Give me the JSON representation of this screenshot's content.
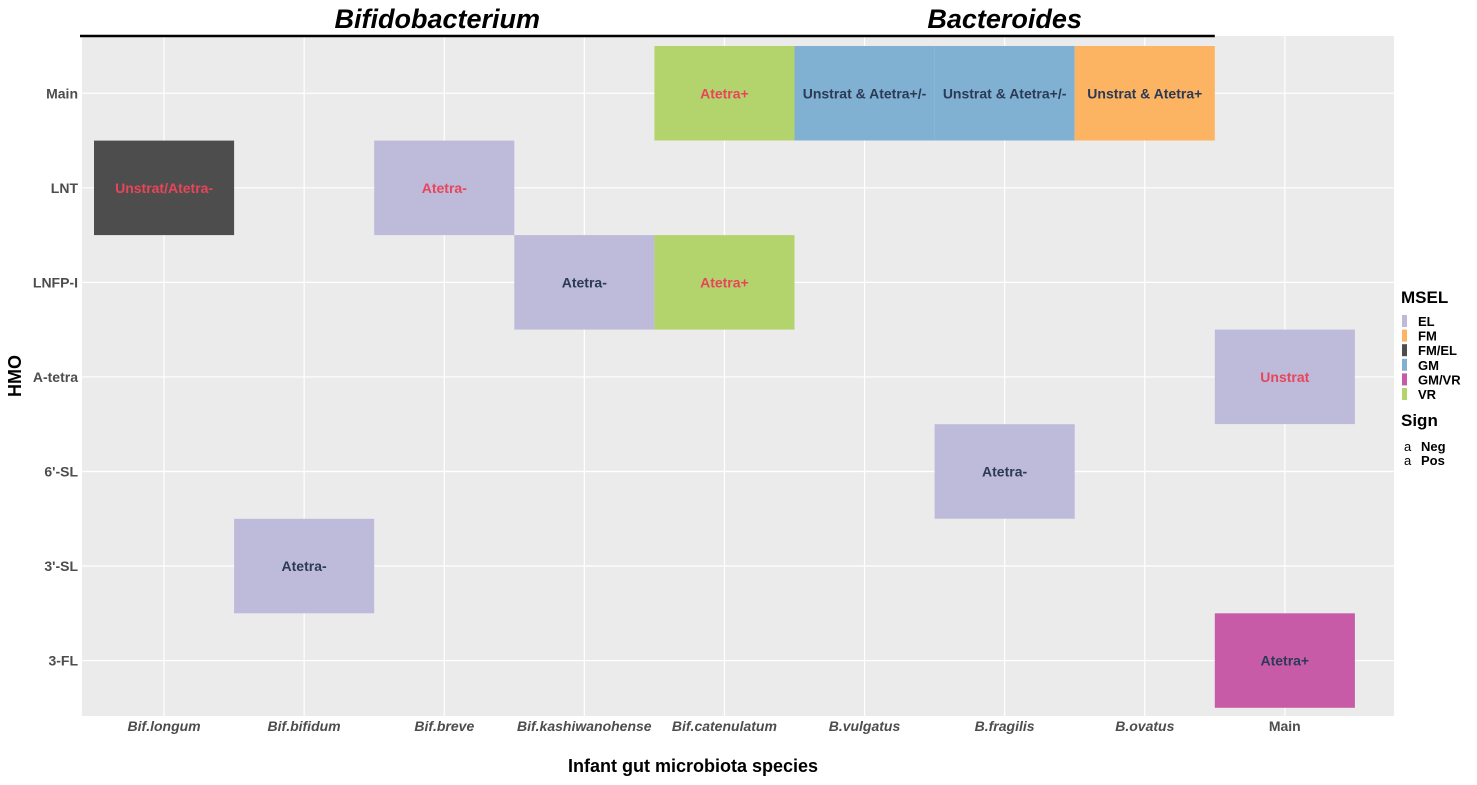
{
  "chart_data": {
    "type": "heatmap",
    "group_titles": [
      {
        "label": "Bifidobacterium",
        "from": 0,
        "to": 4
      },
      {
        "label": "Bacteroides",
        "from": 5,
        "to": 7
      }
    ],
    "x_categories": [
      "Bif.longum",
      "Bif.bifidum",
      "Bif.breve",
      "Bif.kashiwanohense",
      "Bif.catenulatum",
      "B.vulgatus",
      "B.fragilis",
      "B.ovatus",
      "Main"
    ],
    "x_italic": [
      true,
      true,
      true,
      true,
      true,
      true,
      true,
      true,
      false
    ],
    "y_categories": [
      "Main",
      "LNT",
      "LNFP-I",
      "A-tetra",
      "6'-SL",
      "3'-SL",
      "3-FL"
    ],
    "xlabel": "Infant gut microbiota species",
    "ylabel": "HMO",
    "cells": [
      {
        "x": "Bif.catenulatum",
        "y": "Main",
        "msel": "VR",
        "label": "Atetra+",
        "sign": "Neg"
      },
      {
        "x": "B.vulgatus",
        "y": "Main",
        "msel": "GM",
        "label": "Unstrat & Atetra+/-",
        "sign": "Pos"
      },
      {
        "x": "B.fragilis",
        "y": "Main",
        "msel": "GM",
        "label": "Unstrat & Atetra+/-",
        "sign": "Pos"
      },
      {
        "x": "B.ovatus",
        "y": "Main",
        "msel": "FM",
        "label": "Unstrat & Atetra+",
        "sign": "Pos"
      },
      {
        "x": "Bif.longum",
        "y": "LNT",
        "msel": "FM/EL",
        "label": "Unstrat/Atetra-",
        "sign": "Neg"
      },
      {
        "x": "Bif.breve",
        "y": "LNT",
        "msel": "EL",
        "label": "Atetra-",
        "sign": "Neg"
      },
      {
        "x": "Bif.kashiwanohense",
        "y": "LNFP-I",
        "msel": "EL",
        "label": "Atetra-",
        "sign": "Pos"
      },
      {
        "x": "Bif.catenulatum",
        "y": "LNFP-I",
        "msel": "VR",
        "label": "Atetra+",
        "sign": "Neg"
      },
      {
        "x": "Main",
        "y": "A-tetra",
        "msel": "EL",
        "label": "Unstrat",
        "sign": "Neg"
      },
      {
        "x": "B.fragilis",
        "y": "6'-SL",
        "msel": "EL",
        "label": "Atetra-",
        "sign": "Pos"
      },
      {
        "x": "Bif.bifidum",
        "y": "3'-SL",
        "msel": "EL",
        "label": "Atetra-",
        "sign": "Pos"
      },
      {
        "x": "Main",
        "y": "3-FL",
        "msel": "GM/VR",
        "label": "Atetra+",
        "sign": "Pos"
      }
    ],
    "legend": {
      "placement": "right",
      "fill_title": "MSEL",
      "fill_entries": [
        {
          "label": "EL",
          "color": "#bebada"
        },
        {
          "label": "FM",
          "color": "#fdb462"
        },
        {
          "label": "FM/EL",
          "color": "#4d4d4d"
        },
        {
          "label": "GM",
          "color": "#80b1d3"
        },
        {
          "label": "GM/VR",
          "color": "#c75ba7"
        },
        {
          "label": "VR",
          "color": "#b3d46c"
        }
      ],
      "sign_title": "Sign",
      "sign_glyph": "a",
      "sign_entries": [
        {
          "label": "Neg",
          "color": "#e8455a"
        },
        {
          "label": "Pos",
          "color": "#2b3a55"
        }
      ]
    },
    "panel_background": "#ebebeb",
    "grid": true
  }
}
